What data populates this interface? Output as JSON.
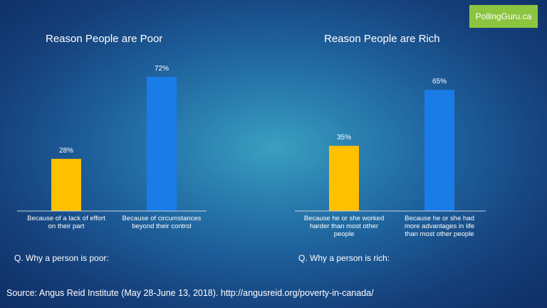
{
  "brand": {
    "text": "PollingGuru.ca",
    "color": "#8cc63f"
  },
  "chart_data": [
    {
      "type": "bar",
      "title": "Reason People are Poor",
      "categories": [
        "Because of a lack of effort on their part",
        "Because of circumstances beyond their control"
      ],
      "category_lines": [
        [
          "Because of a lack of effort",
          "on their part"
        ],
        [
          "Because of circumstances",
          "beyond their control"
        ]
      ],
      "values": [
        28,
        72
      ],
      "data_labels": [
        "28%",
        "72%"
      ],
      "colors": [
        "#ffc000",
        "#1a7ce6"
      ],
      "ylim": [
        0,
        75
      ],
      "grid": false,
      "question": "Q. Why a person is poor:"
    },
    {
      "type": "bar",
      "title": "Reason People are Rich",
      "categories": [
        "Because he or she worked harder than most other people",
        "Because he or she had more advantages in life than most other people"
      ],
      "category_lines": [
        [
          "Because he or she worked",
          "harder than most other",
          "people"
        ],
        [
          "Because he or she had",
          "more advantages in life",
          "than most other people"
        ]
      ],
      "values": [
        35,
        65
      ],
      "data_labels": [
        "35%",
        "65%"
      ],
      "colors": [
        "#ffc000",
        "#1a7ce6"
      ],
      "ylim": [
        0,
        75
      ],
      "grid": false,
      "question": "Q. Why a person is rich:"
    }
  ],
  "source": "Source:  Angus Reid Institute (May 28-June 13, 2018). http://angusreid.org/poverty-in-canada/"
}
